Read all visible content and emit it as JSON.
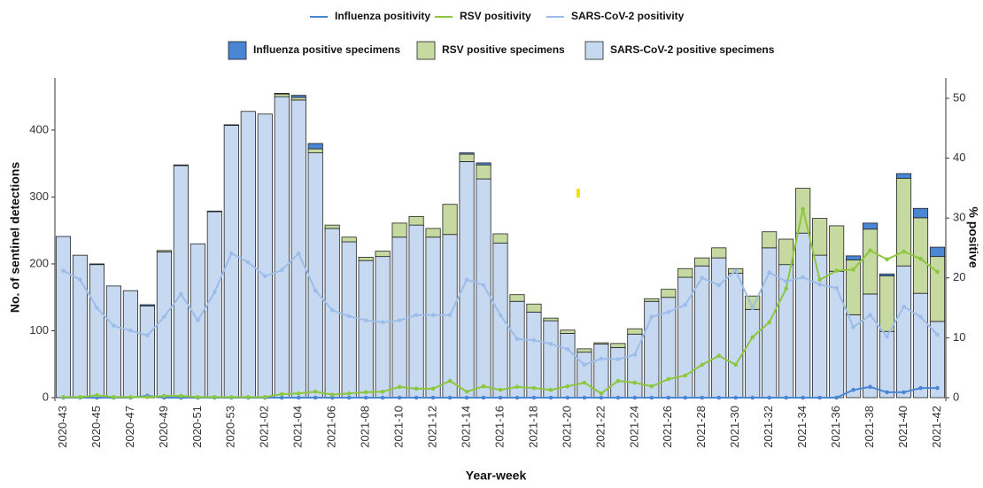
{
  "chart_data": {
    "type": "combo",
    "xlabel": "Year-week",
    "ylabel": "No. of sentinel detections",
    "y2label": "% positive",
    "categories": [
      "2020-43",
      null,
      "2020-45",
      null,
      "2020-47",
      null,
      "2020-49",
      null,
      "2020-51",
      null,
      "2020-53",
      null,
      "2021-02",
      null,
      "2021-04",
      null,
      "2021-06",
      null,
      "2021-08",
      null,
      "2021-10",
      null,
      "2021-12",
      null,
      "2021-14",
      null,
      "2021-16",
      null,
      "2021-18",
      null,
      "2021-20",
      null,
      "2021-22",
      null,
      "2021-24",
      null,
      "2021-26",
      null,
      "2021-28",
      null,
      "2021-30",
      null,
      "2021-32",
      null,
      "2021-34",
      null,
      "2021-36",
      null,
      "2021-38",
      null,
      "2021-40",
      null,
      "2021-42"
    ],
    "ylim": [
      0,
      478
    ],
    "yticks": [
      0,
      100,
      200,
      300,
      400
    ],
    "y2lim": [
      0,
      53.4
    ],
    "y2ticks": [
      0,
      10,
      20,
      30,
      40,
      50
    ],
    "series": [
      {
        "name": "Influenza positivity",
        "kind": "line",
        "axis": "y2",
        "color": "#4a86d4",
        "values": [
          0,
          0,
          0,
          0,
          0,
          0.3,
          0,
          0,
          0,
          0,
          0,
          0,
          0,
          0,
          0,
          0,
          0,
          0,
          0,
          0,
          0,
          0,
          0,
          0,
          0,
          0,
          0,
          0,
          0,
          0,
          0,
          0,
          0,
          0,
          0,
          0,
          0,
          0,
          0,
          0,
          0,
          0,
          0,
          0,
          0,
          0,
          0,
          1.3,
          1.8,
          0.9,
          0.9,
          1.6,
          1.6
        ]
      },
      {
        "name": "RSV positivity",
        "kind": "line",
        "axis": "y2",
        "color": "#8dc63f",
        "values": [
          0.1,
          0.1,
          0.4,
          0.1,
          0.1,
          0.1,
          0.3,
          0.3,
          0.1,
          0.1,
          0.1,
          0.1,
          0.1,
          0.6,
          0.7,
          1,
          0.5,
          0.7,
          0.9,
          1,
          1.8,
          1.5,
          1.5,
          2.8,
          1,
          1.9,
          1.3,
          1.8,
          1.6,
          1.3,
          1.9,
          2.5,
          0.7,
          2.8,
          2.5,
          1.9,
          3.1,
          3.7,
          5.5,
          7,
          5.5,
          10.1,
          12.6,
          18.2,
          31.5,
          19.7,
          21.2,
          21.4,
          24.6,
          23.1,
          24.4,
          23.2,
          21
        ]
      },
      {
        "name": "SARS-CoV-2 positivity",
        "kind": "line",
        "axis": "y2",
        "color": "#9dbde8",
        "values": [
          21.2,
          19.7,
          15,
          12,
          11.2,
          10.4,
          13.5,
          17.3,
          12.9,
          17.6,
          24.1,
          22.6,
          20.3,
          21.3,
          24.1,
          17.9,
          14.6,
          13.6,
          12.9,
          12.6,
          12.9,
          13.8,
          13.8,
          13.8,
          19.7,
          18.8,
          13.8,
          9.8,
          9.6,
          9,
          8.1,
          5.5,
          6.5,
          6.4,
          7.2,
          13.5,
          14.3,
          15.5,
          20,
          18.8,
          21.2,
          15,
          20.9,
          19.4,
          20.1,
          18.9,
          18.3,
          11.8,
          13.8,
          10.2,
          15.2,
          13.5,
          10.5
        ]
      },
      {
        "name": "Influenza positive specimens",
        "kind": "bar",
        "color": "#4a86d4",
        "values": [
          0,
          0,
          0,
          0,
          0,
          2,
          0,
          0,
          0,
          0,
          0,
          0,
          0,
          1,
          3,
          8,
          0,
          0,
          0,
          0,
          0,
          0,
          0,
          0,
          2,
          3,
          0,
          0,
          0,
          0,
          0,
          0,
          0,
          0,
          0,
          0,
          0,
          0,
          0,
          0,
          0,
          0,
          0,
          0,
          0,
          0,
          0,
          6,
          9,
          3,
          7,
          14,
          14
        ]
      },
      {
        "name": "RSV positive specimens",
        "kind": "bar",
        "color": "#c5d9a0",
        "values": [
          0,
          0,
          1,
          0,
          0,
          0,
          2,
          1,
          0,
          1,
          1,
          0,
          0,
          4,
          4,
          6,
          5,
          7,
          5,
          8,
          21,
          13,
          13,
          45,
          11,
          21,
          14,
          10,
          12,
          4,
          5,
          5,
          2,
          6,
          8,
          4,
          12,
          13,
          12,
          15,
          7,
          20,
          24,
          38,
          67,
          55,
          68,
          82,
          97,
          83,
          131,
          113,
          97
        ]
      },
      {
        "name": "SARS-CoV-2 positive specimens",
        "kind": "bar",
        "color": "#c6d9f1",
        "values": [
          241,
          213,
          199,
          167,
          160,
          137,
          218,
          347,
          230,
          278,
          407,
          428,
          424,
          450,
          445,
          366,
          253,
          233,
          205,
          211,
          240,
          258,
          240,
          244,
          353,
          327,
          231,
          144,
          128,
          115,
          96,
          68,
          80,
          75,
          95,
          144,
          150,
          180,
          197,
          209,
          186,
          132,
          224,
          199,
          246,
          213,
          189,
          124,
          155,
          99,
          197,
          156,
          114
        ]
      }
    ]
  }
}
